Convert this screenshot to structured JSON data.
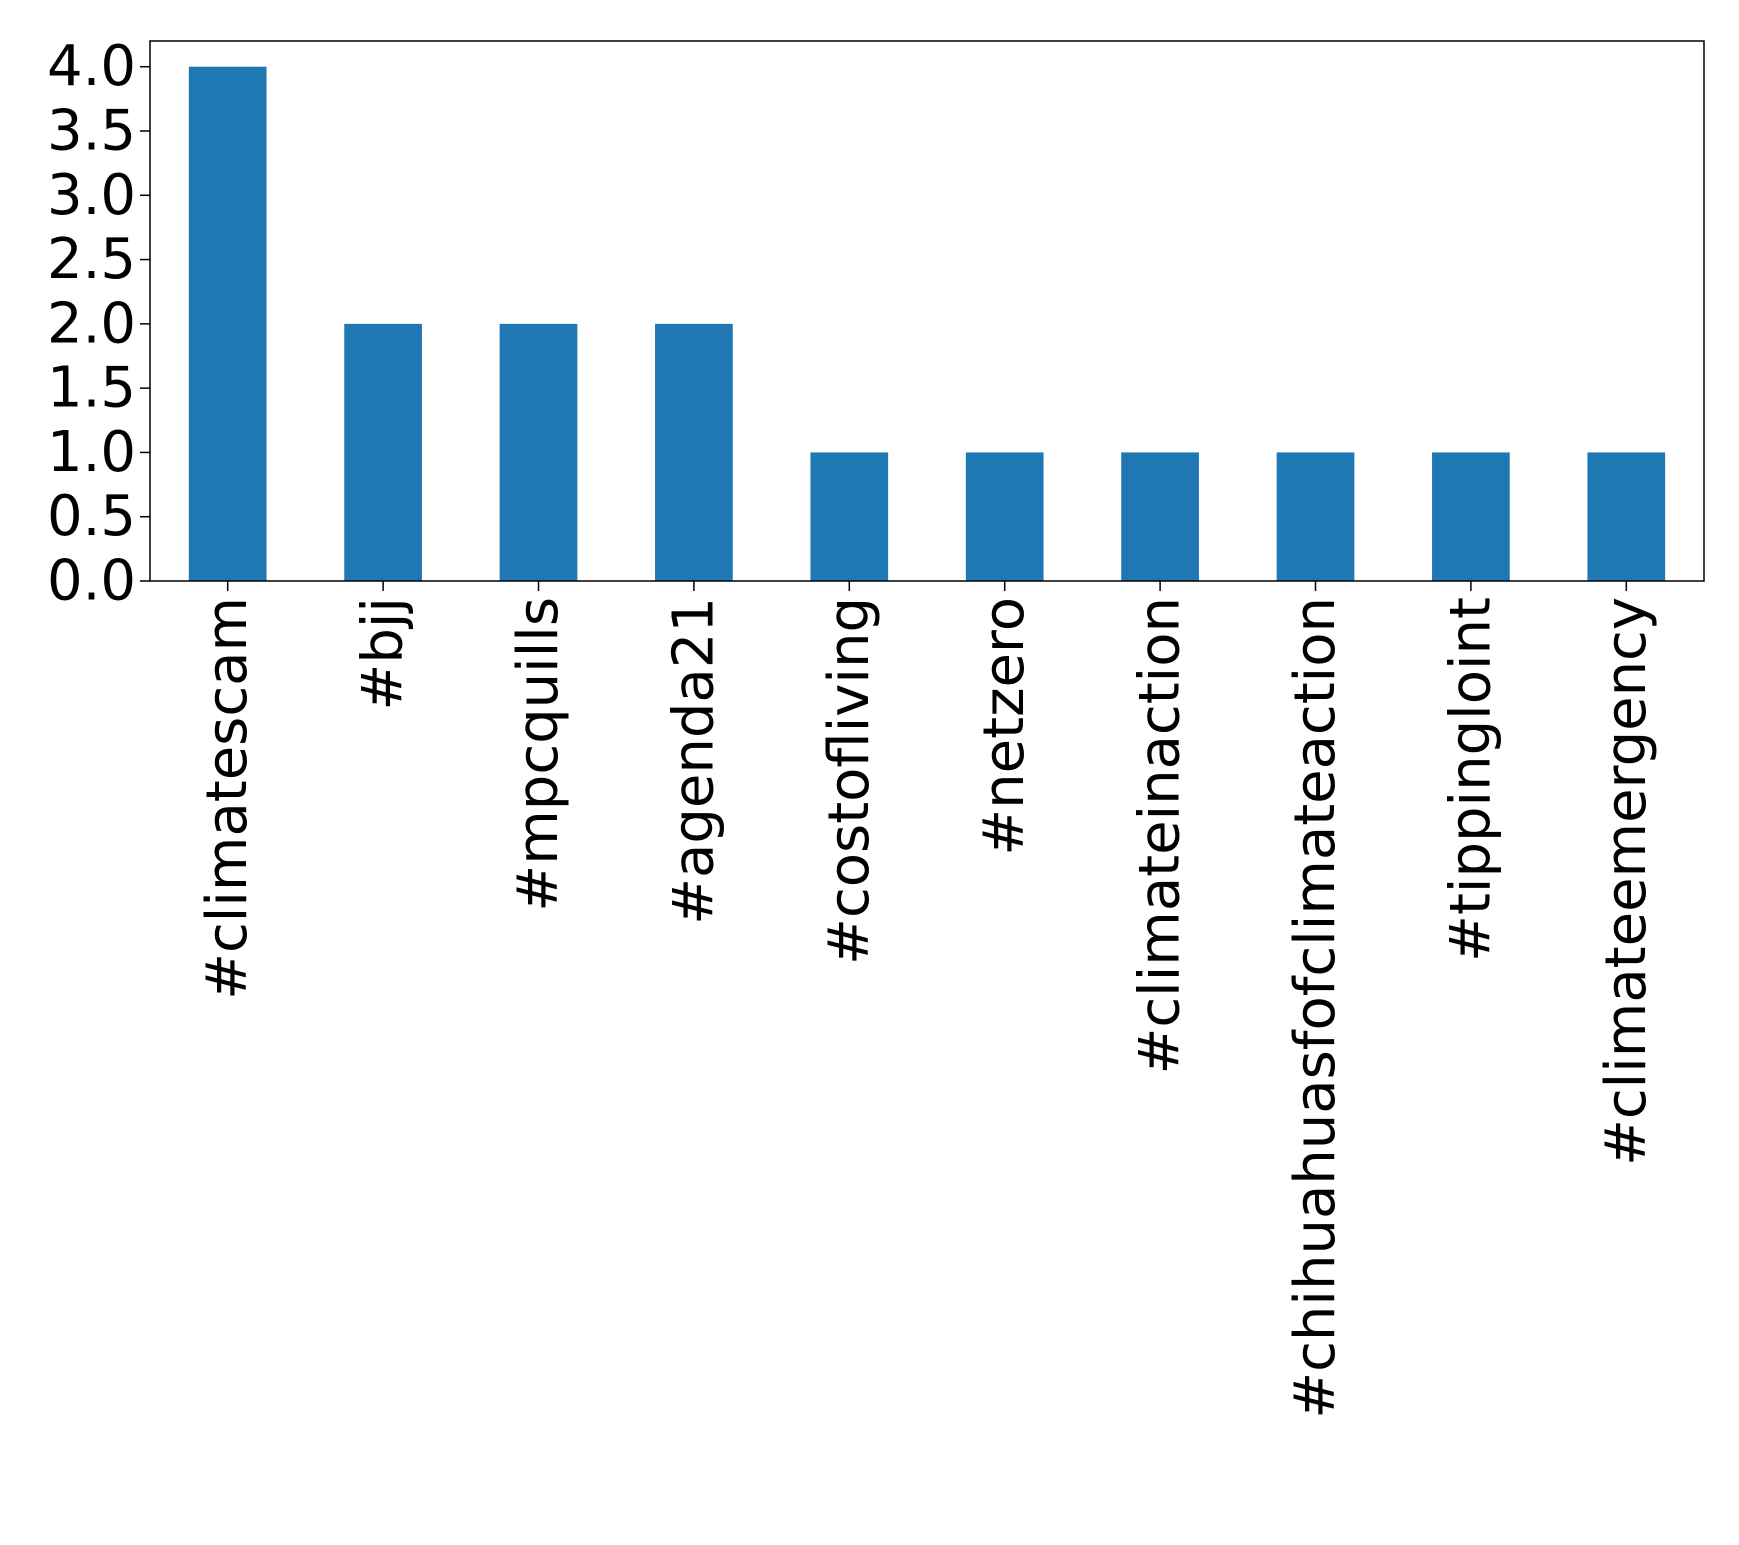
{
  "chart_data": {
    "type": "bar",
    "categories": [
      "#climatescam",
      "#bjj",
      "#mpcquills",
      "#agenda21",
      "#costofliving",
      "#netzero",
      "#climateinaction",
      "#chihuahuasfofclimateaction",
      "#tippingloint",
      "#climateemergency"
    ],
    "values": [
      4,
      2,
      2,
      2,
      1,
      1,
      1,
      1,
      1,
      1
    ],
    "ylim": [
      0,
      4.2
    ],
    "yticks": [
      "0.0",
      "0.5",
      "1.0",
      "1.5",
      "2.0",
      "2.5",
      "3.0",
      "3.5",
      "4.0"
    ],
    "title": "",
    "xlabel": "",
    "ylabel": "",
    "bar_color": "#1f77b4",
    "grid": false,
    "legend": "none"
  }
}
